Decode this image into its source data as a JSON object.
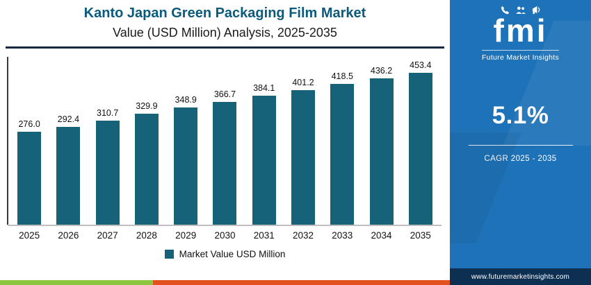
{
  "header": {
    "title_line1": "Kanto Japan Green Packaging Film Market",
    "title_line2": "Value (USD Million) Analysis, 2025-2035"
  },
  "chart_data": {
    "type": "bar",
    "title": "Kanto Japan Green Packaging Film Market Value (USD Million) Analysis, 2025-2035",
    "categories": [
      "2025",
      "2026",
      "2027",
      "2028",
      "2029",
      "2030",
      "2031",
      "2032",
      "2033",
      "2034",
      "2035"
    ],
    "values": [
      276.0,
      292.4,
      310.7,
      329.9,
      348.9,
      366.7,
      384.1,
      401.2,
      418.5,
      436.2,
      453.4
    ],
    "value_label_decimals": 1,
    "legend": "Market Value USD Million",
    "xlabel": "",
    "ylabel": "Market Value USD Million",
    "ylim": [
      0,
      500
    ],
    "grid": false,
    "legend_position": "bottom",
    "bar_color": "#156279"
  },
  "legend": {
    "label": "Market Value USD Million"
  },
  "sidebar": {
    "logo_text": "fmi",
    "logo_subtext": "Future Market Insights",
    "cagr_value": "5.1%",
    "cagr_label": "CAGR 2025 - 2035",
    "website": "www.futuremarketinsights.com"
  },
  "colors": {
    "bar": "#156279",
    "title": "#0a5a7c",
    "panel": "#1e72b8",
    "footer_navy": "#0d2f52",
    "strip_green": "#8cc63e",
    "strip_orange": "#e2511f"
  }
}
